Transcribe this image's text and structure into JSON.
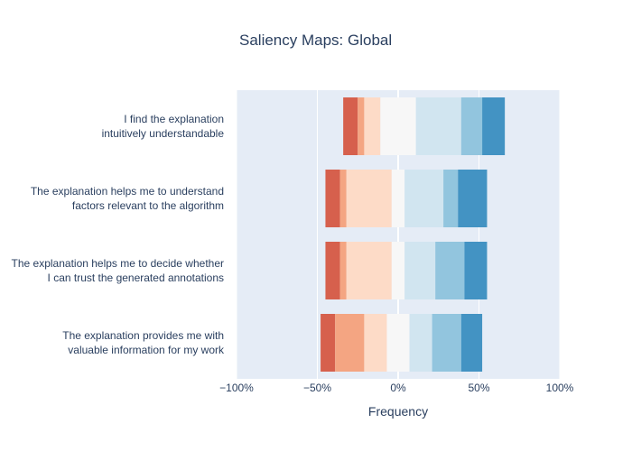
{
  "chart_data": {
    "type": "bar",
    "orientation": "horizontal",
    "stacked": "diverging",
    "title": "Saliency Maps: Global",
    "xlabel": "Frequency",
    "ylabel": "",
    "xlim": [
      -100,
      100
    ],
    "x_ticks": [
      "−100%",
      "−50%",
      "0%",
      "50%",
      "100%"
    ],
    "categories": [
      [
        "I find the explanation",
        "intuitively understandable"
      ],
      [
        "The explanation helps me to understand",
        "factors relevant to the algorithm"
      ],
      [
        "The explanation helps me to decide whether",
        "I can trust the generated annotations"
      ],
      [
        "The explanation provides me with",
        "valuable information for my work"
      ]
    ],
    "levels": [
      {
        "color": "#d6604d"
      },
      {
        "color": "#f4a582"
      },
      {
        "color": "#fddbc7"
      },
      {
        "color": "#f7f7f7"
      },
      {
        "color": "#d1e5f0"
      },
      {
        "color": "#92c5de"
      },
      {
        "color": "#4393c3"
      }
    ],
    "segments": [
      [
        [
          -34,
          -25
        ],
        [
          -25,
          -21
        ],
        [
          -21,
          -11
        ],
        [
          -11,
          11
        ],
        [
          11,
          39
        ],
        [
          39,
          52
        ],
        [
          52,
          66
        ]
      ],
      [
        [
          -45,
          -36
        ],
        [
          -36,
          -32
        ],
        [
          -32,
          -4
        ],
        [
          -4,
          4
        ],
        [
          4,
          28
        ],
        [
          28,
          37
        ],
        [
          37,
          55
        ]
      ],
      [
        [
          -45,
          -36
        ],
        [
          -36,
          -32
        ],
        [
          -32,
          -4
        ],
        [
          -4,
          4
        ],
        [
          4,
          23
        ],
        [
          23,
          41
        ],
        [
          41,
          55
        ]
      ],
      [
        [
          -48,
          -39
        ],
        [
          -39,
          -21
        ],
        [
          -21,
          -7
        ],
        [
          -7,
          7
        ],
        [
          7,
          21
        ],
        [
          21,
          39
        ],
        [
          39,
          52
        ]
      ]
    ],
    "grid": true,
    "background": "#e5ecf6"
  }
}
